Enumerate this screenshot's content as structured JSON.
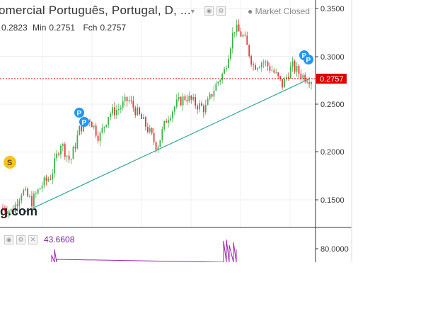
{
  "header": {
    "title": "omercial Português, Portugal, D, ...",
    "market_status": "Market Closed",
    "ohlc": {
      "high": "0.2823",
      "low_label": "Min",
      "low": "0.2751",
      "close_label": "Fch",
      "close": "0.2757"
    }
  },
  "price_axis": {
    "ticks": [
      "0.3500",
      "0.3000",
      "0.2500",
      "0.2000",
      "0.1500"
    ],
    "current_price": "0.2757"
  },
  "indicator": {
    "value": "43.6608",
    "axis_tick": "80.0000"
  },
  "markers": {
    "split": "S",
    "pivot": "P"
  },
  "watermark": "g.com",
  "colors": {
    "up": "#26a69a",
    "up_candle": "#3cb34a",
    "down": "#e53935",
    "trendline": "#26a69a",
    "price_line": "#cc0000",
    "indicator": "#9c27b0",
    "marker_blue": "#2196f3",
    "marker_yellow": "#f5c518"
  },
  "chart_data": {
    "type": "candlestick",
    "y_axis_ticks": [
      0.35,
      0.3,
      0.25,
      0.2,
      0.15
    ],
    "ylim": [
      0.12,
      0.36
    ],
    "last_close": 0.2757,
    "trendline": [
      [
        0.13,
        0.272
      ]
    ],
    "approx_path": [
      0.142,
      0.138,
      0.16,
      0.148,
      0.165,
      0.175,
      0.21,
      0.19,
      0.225,
      0.235,
      0.215,
      0.24,
      0.245,
      0.255,
      0.24,
      0.225,
      0.205,
      0.235,
      0.25,
      0.258,
      0.25,
      0.245,
      0.268,
      0.285,
      0.33,
      0.32,
      0.29,
      0.295,
      0.285,
      0.27,
      0.29,
      0.28,
      0.276
    ]
  }
}
